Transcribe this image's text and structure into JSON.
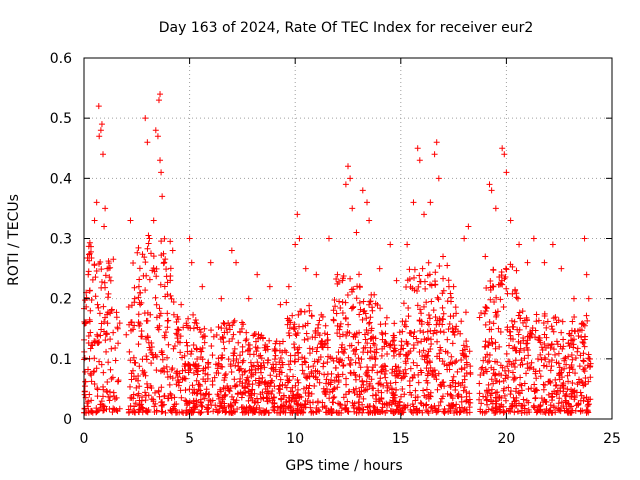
{
  "chart_data": {
    "type": "scatter",
    "title": "Day 163 of 2024, Rate Of TEC Index for receiver eur2",
    "xlabel": "GPS time / hours",
    "ylabel": "ROTI / TECUs",
    "xlim": [
      0,
      25
    ],
    "ylim": [
      0,
      0.6
    ],
    "xticks": [
      "0",
      "5",
      "10",
      "15",
      "20",
      "25"
    ],
    "yticks": [
      "0",
      "0.1",
      "0.2",
      "0.3",
      "0.4",
      "0.5",
      "0.6"
    ],
    "grid": true,
    "legend": "none",
    "marker": "plus",
    "color": "#ff0000",
    "series": [
      {
        "points": [
          [
            0.1,
            0.21
          ],
          [
            0.2,
            0.24
          ],
          [
            0.3,
            0.18
          ],
          [
            0.5,
            0.33
          ],
          [
            0.6,
            0.36
          ],
          [
            0.7,
            0.52
          ],
          [
            0.72,
            0.47
          ],
          [
            0.8,
            0.48
          ],
          [
            0.85,
            0.49
          ],
          [
            0.9,
            0.44
          ],
          [
            0.95,
            0.32
          ],
          [
            1.0,
            0.35
          ],
          [
            1.1,
            0.25
          ],
          [
            1.3,
            0.18
          ],
          [
            1.6,
            0.15
          ],
          [
            2.0,
            0.14
          ],
          [
            2.2,
            0.33
          ],
          [
            2.4,
            0.2
          ],
          [
            2.6,
            0.22
          ],
          [
            2.9,
            0.5
          ],
          [
            3.0,
            0.46
          ],
          [
            3.1,
            0.3
          ],
          [
            3.3,
            0.33
          ],
          [
            3.4,
            0.48
          ],
          [
            3.5,
            0.47
          ],
          [
            3.55,
            0.53
          ],
          [
            3.6,
            0.54
          ],
          [
            3.6,
            0.43
          ],
          [
            3.65,
            0.41
          ],
          [
            3.7,
            0.37
          ],
          [
            3.8,
            0.26
          ],
          [
            4.2,
            0.28
          ],
          [
            4.6,
            0.19
          ],
          [
            5.0,
            0.3
          ],
          [
            5.1,
            0.26
          ],
          [
            5.6,
            0.22
          ],
          [
            6.0,
            0.26
          ],
          [
            6.5,
            0.2
          ],
          [
            7.0,
            0.28
          ],
          [
            7.2,
            0.26
          ],
          [
            7.8,
            0.2
          ],
          [
            8.2,
            0.24
          ],
          [
            8.8,
            0.22
          ],
          [
            9.3,
            0.19
          ],
          [
            9.7,
            0.22
          ],
          [
            10.0,
            0.29
          ],
          [
            10.1,
            0.34
          ],
          [
            10.2,
            0.3
          ],
          [
            10.5,
            0.25
          ],
          [
            11.0,
            0.24
          ],
          [
            11.6,
            0.3
          ],
          [
            12.0,
            0.24
          ],
          [
            12.4,
            0.39
          ],
          [
            12.5,
            0.42
          ],
          [
            12.6,
            0.4
          ],
          [
            12.7,
            0.35
          ],
          [
            12.9,
            0.31
          ],
          [
            13.2,
            0.38
          ],
          [
            13.4,
            0.36
          ],
          [
            13.5,
            0.33
          ],
          [
            14.0,
            0.25
          ],
          [
            14.5,
            0.29
          ],
          [
            14.8,
            0.23
          ],
          [
            15.3,
            0.29
          ],
          [
            15.6,
            0.36
          ],
          [
            15.8,
            0.45
          ],
          [
            15.9,
            0.43
          ],
          [
            16.1,
            0.34
          ],
          [
            16.4,
            0.36
          ],
          [
            16.6,
            0.44
          ],
          [
            16.7,
            0.46
          ],
          [
            16.8,
            0.4
          ],
          [
            17.0,
            0.27
          ],
          [
            17.5,
            0.22
          ],
          [
            18.0,
            0.3
          ],
          [
            18.2,
            0.32
          ],
          [
            19.0,
            0.27
          ],
          [
            19.2,
            0.39
          ],
          [
            19.3,
            0.38
          ],
          [
            19.5,
            0.35
          ],
          [
            19.8,
            0.45
          ],
          [
            19.9,
            0.44
          ],
          [
            20.0,
            0.41
          ],
          [
            20.2,
            0.33
          ],
          [
            20.6,
            0.29
          ],
          [
            21.0,
            0.26
          ],
          [
            21.3,
            0.3
          ],
          [
            21.8,
            0.26
          ],
          [
            22.2,
            0.29
          ],
          [
            22.6,
            0.25
          ],
          [
            23.2,
            0.2
          ],
          [
            23.7,
            0.3
          ],
          [
            23.8,
            0.24
          ],
          [
            23.9,
            0.2
          ]
        ]
      }
    ]
  }
}
